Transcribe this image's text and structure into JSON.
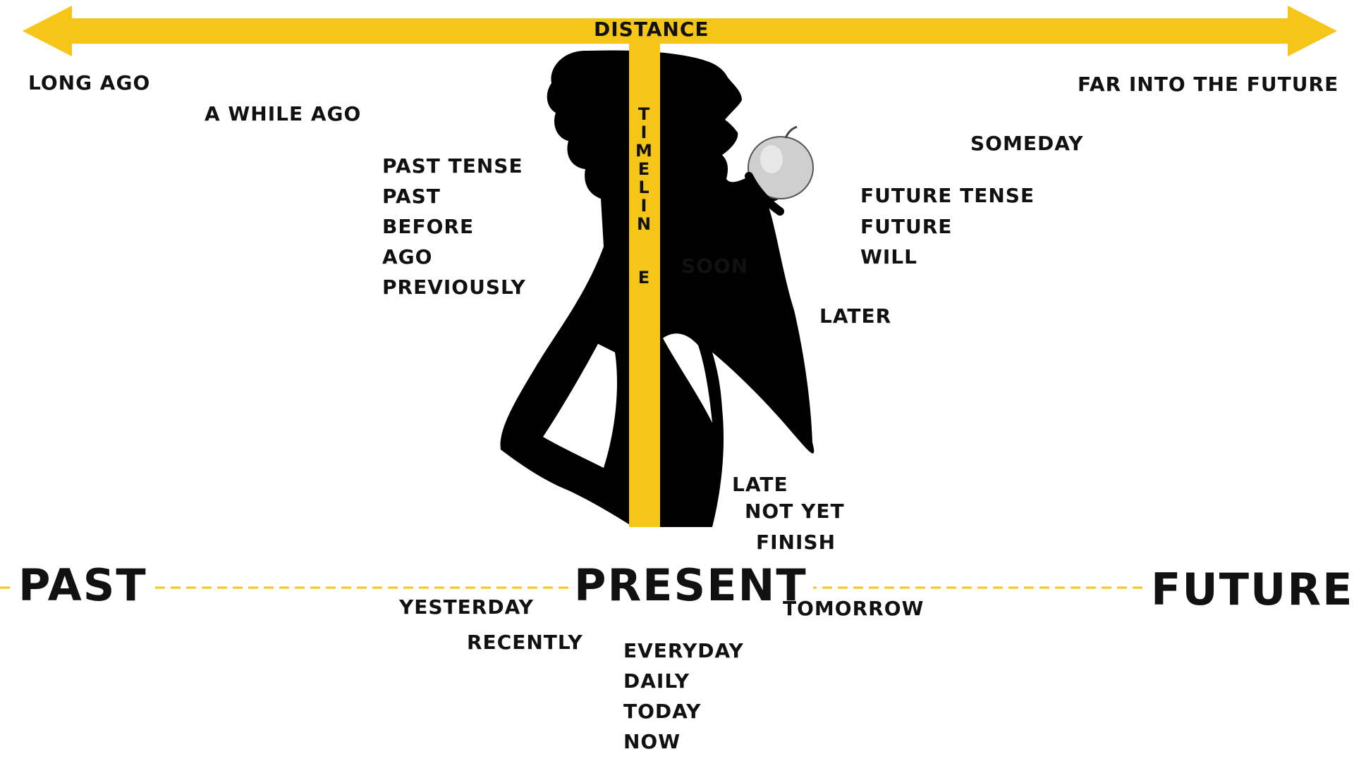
{
  "colors": {
    "accent": "#f5c518",
    "text": "#111111",
    "silhouette": "#000000",
    "apple": "#cfcfcf"
  },
  "arrow": {
    "label": "Distance"
  },
  "timeline": {
    "label": "TIMELINE",
    "letters": [
      "T",
      "I",
      "M",
      "E",
      "L",
      "I",
      "N",
      "E"
    ]
  },
  "axis": {
    "past": "PAST",
    "present": "PRESENT",
    "future": "FUTURE"
  },
  "words": {
    "long_ago": "LONG AGO",
    "a_while_ago": "A WHILE AGO",
    "far_future": "FAR INTO THE FUTURE",
    "someday": "SOMEDAY",
    "past_list": [
      "PAST TENSE",
      "PAST",
      "BEFORE",
      "AGO",
      "PREVIOUSLY"
    ],
    "future_list": [
      "FUTURE TENSE",
      "FUTURE",
      "WILL"
    ],
    "soon": "SOON",
    "later": "LATER",
    "late": "LATE",
    "not_yet": "NOT YET",
    "finish": "FINISH",
    "yesterday": "YESTERDAY",
    "recently": "RECENTLY",
    "tomorrow": "TOMORROW",
    "present_list": [
      "EVERYDAY",
      "DAILY",
      "TODAY",
      "NOW"
    ]
  },
  "image": {
    "figure": "woman-silhouette-eating-apple",
    "object": "apple-icon"
  }
}
